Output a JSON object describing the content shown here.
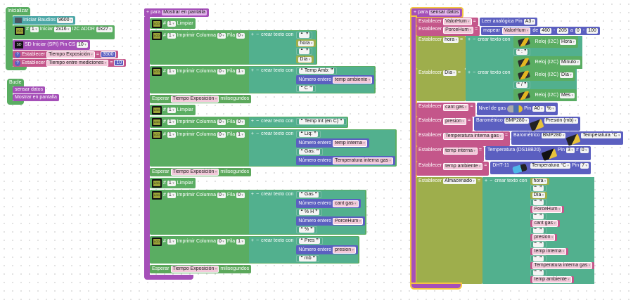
{
  "labels": {
    "establecer": "Establecer",
    "eq": "=",
    "para": "para",
    "plus": "+",
    "minus": "−",
    "join": "crear texto con",
    "limpiar": "Limpiar",
    "imprimir": "Imprimir",
    "columna": "Columna",
    "fila": "Fila",
    "esperar": "Esperar",
    "ms": "milisegundos",
    "numero": "Número entero",
    "hash": "#",
    "reloj": "Reloj (I2C)",
    "pin": "Pin",
    "lcd": "LCD",
    "de": "de",
    "a": "a",
    "dash": "-"
  },
  "init": {
    "title": "Inicializar",
    "serial": {
      "label": "Iniciar",
      "baud_label": "Baudios",
      "baud": "9600"
    },
    "lcd": {
      "num": "1",
      "label": "Iniciar",
      "size": "2x16",
      "addr_label": "I2C ADDR",
      "addr": "0x27"
    },
    "sd": {
      "icon_text": "SD",
      "label": "SD Iniciar (SPI)",
      "pin_label": "Pin CS",
      "pin": "10"
    },
    "sets": [
      {
        "var": "Tiempo Exposición",
        "value": "3500"
      },
      {
        "var": "Tiempo entre mediciones",
        "value": "10"
      }
    ]
  },
  "loop": {
    "title": "Bucle",
    "calls": [
      "sensar datos",
      "Mostrar en pantalla"
    ]
  },
  "mostrar": {
    "name": "Mostrar en pantalla",
    "lcd_num": "1",
    "wait_var": "Tiempo Exposición",
    "prints": [
      {
        "col": "0",
        "row": "0",
        "items": [
          {
            "text": ""
          },
          {
            "var": "hora"
          },
          {
            "text": ""
          },
          {
            "var": "Día"
          }
        ]
      },
      {
        "col": "0",
        "row": "1",
        "items": [
          {
            "text": "Temp Amb:"
          },
          {
            "var": "temp ambiente"
          },
          {
            "text": "C"
          }
        ]
      },
      {
        "col": "0",
        "row": "0",
        "items": [
          {
            "text": "Temp Int (en C)"
          }
        ]
      },
      {
        "col": "0",
        "row": "1",
        "items": [
          {
            "text": "Liq:"
          },
          {
            "var": "temp interna"
          },
          {
            "text": "Gas:"
          },
          {
            "var": "Temperatura interna gas"
          }
        ]
      },
      {
        "col": "0",
        "row": "0",
        "items": [
          {
            "text": "Gas"
          },
          {
            "var": "cant gas"
          },
          {
            "text": "% H"
          },
          {
            "var": "PorceHum"
          },
          {
            "text": "%"
          }
        ]
      },
      {
        "col": "0",
        "row": "1",
        "items": [
          {
            "text": "Pres"
          },
          {
            "var": "presion"
          },
          {
            "text": "mb"
          }
        ]
      }
    ]
  },
  "sensar": {
    "name": "sensar datos",
    "valorhum": {
      "var": "ValorHum",
      "read": "Leer analógica Pin",
      "pin": "A3"
    },
    "porcehum": {
      "var": "PorceHum",
      "map": "mapear",
      "src": "ValorHum",
      "from_low": "460",
      "from_high": "205",
      "to_low": "0",
      "to_high": "100"
    },
    "hora": {
      "var": "hora",
      "first": "Hora",
      "sep": ":",
      "second": "Minuto"
    },
    "dia": {
      "var": "Día",
      "first": "Día",
      "sep": "/",
      "second": "Mes"
    },
    "cantgas": {
      "var": "cant gas",
      "label": "Nivel de gas",
      "pin": "A0",
      "unit": "%"
    },
    "presion": {
      "var": "presion",
      "label": "Barométrico",
      "sensor": "BMP280",
      "measure": "Presión (mb)"
    },
    "tempgas": {
      "var": "Temperatura interna gas",
      "label": "Barométrico",
      "sensor": "BMP280",
      "measure": "Temperatura °C"
    },
    "tempint": {
      "var": "temp interna",
      "label": "Temperatura (DS18B20)",
      "pin": "3",
      "index": "0"
    },
    "tempamb": {
      "var": "temp ambiente",
      "label": "DHT-11",
      "measure": "Temperatura °C",
      "pin": "7"
    },
    "almacenado": {
      "var": "Almacenado",
      "items": [
        "hora",
        "",
        "Día",
        "",
        "PorceHum",
        "",
        "cant gas",
        "",
        "presion",
        "",
        "temp interna",
        "",
        "Temperatura interna gas",
        "",
        "temp ambiente"
      ]
    }
  },
  "colors": {
    "procedure": "#a54fb8",
    "lcd": "#5aad62",
    "text_join": "#52b08e",
    "number": "#5b5fc0",
    "variable": "#c4568a",
    "serial": "#4ea8a8",
    "text_var": "#9eae4c",
    "selected": "#f4c542"
  }
}
